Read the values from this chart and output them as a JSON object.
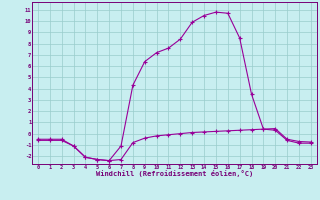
{
  "xlabel": "Windchill (Refroidissement éolien,°C)",
  "bg_color": "#c8eef0",
  "grid_color": "#99cccc",
  "line_color": "#990099",
  "spine_color": "#770077",
  "xlim": [
    -0.5,
    23.5
  ],
  "ylim": [
    -2.7,
    11.7
  ],
  "xticks": [
    0,
    1,
    2,
    3,
    4,
    5,
    6,
    7,
    8,
    9,
    10,
    11,
    12,
    13,
    14,
    15,
    16,
    17,
    18,
    19,
    20,
    21,
    22,
    23
  ],
  "yticks": [
    -2,
    -1,
    0,
    1,
    2,
    3,
    4,
    5,
    6,
    7,
    8,
    9,
    10,
    11
  ],
  "curve1_x": [
    0,
    1,
    2,
    3,
    4,
    5,
    6,
    7,
    8,
    9,
    10,
    11,
    12,
    13,
    14,
    15,
    16,
    17,
    18,
    19,
    20,
    21,
    22,
    23
  ],
  "curve1_y": [
    -0.5,
    -0.5,
    -0.5,
    -1.1,
    -2.1,
    -2.3,
    -2.4,
    -2.3,
    -0.8,
    -0.4,
    -0.2,
    -0.1,
    0.0,
    0.1,
    0.15,
    0.2,
    0.25,
    0.3,
    0.35,
    0.4,
    0.45,
    -0.5,
    -0.7,
    -0.75
  ],
  "curve2_x": [
    0,
    1,
    2,
    3,
    4,
    5,
    6,
    7,
    8,
    9,
    10,
    11,
    12,
    13,
    14,
    15,
    16,
    17,
    18,
    19,
    20,
    21,
    22,
    23
  ],
  "curve2_y": [
    -0.6,
    -0.6,
    -0.6,
    -1.1,
    -2.1,
    -2.3,
    -2.4,
    -1.1,
    4.3,
    6.4,
    7.2,
    7.6,
    8.4,
    9.9,
    10.5,
    10.8,
    10.7,
    8.5,
    3.5,
    0.4,
    0.3,
    -0.6,
    -0.85,
    -0.85
  ]
}
